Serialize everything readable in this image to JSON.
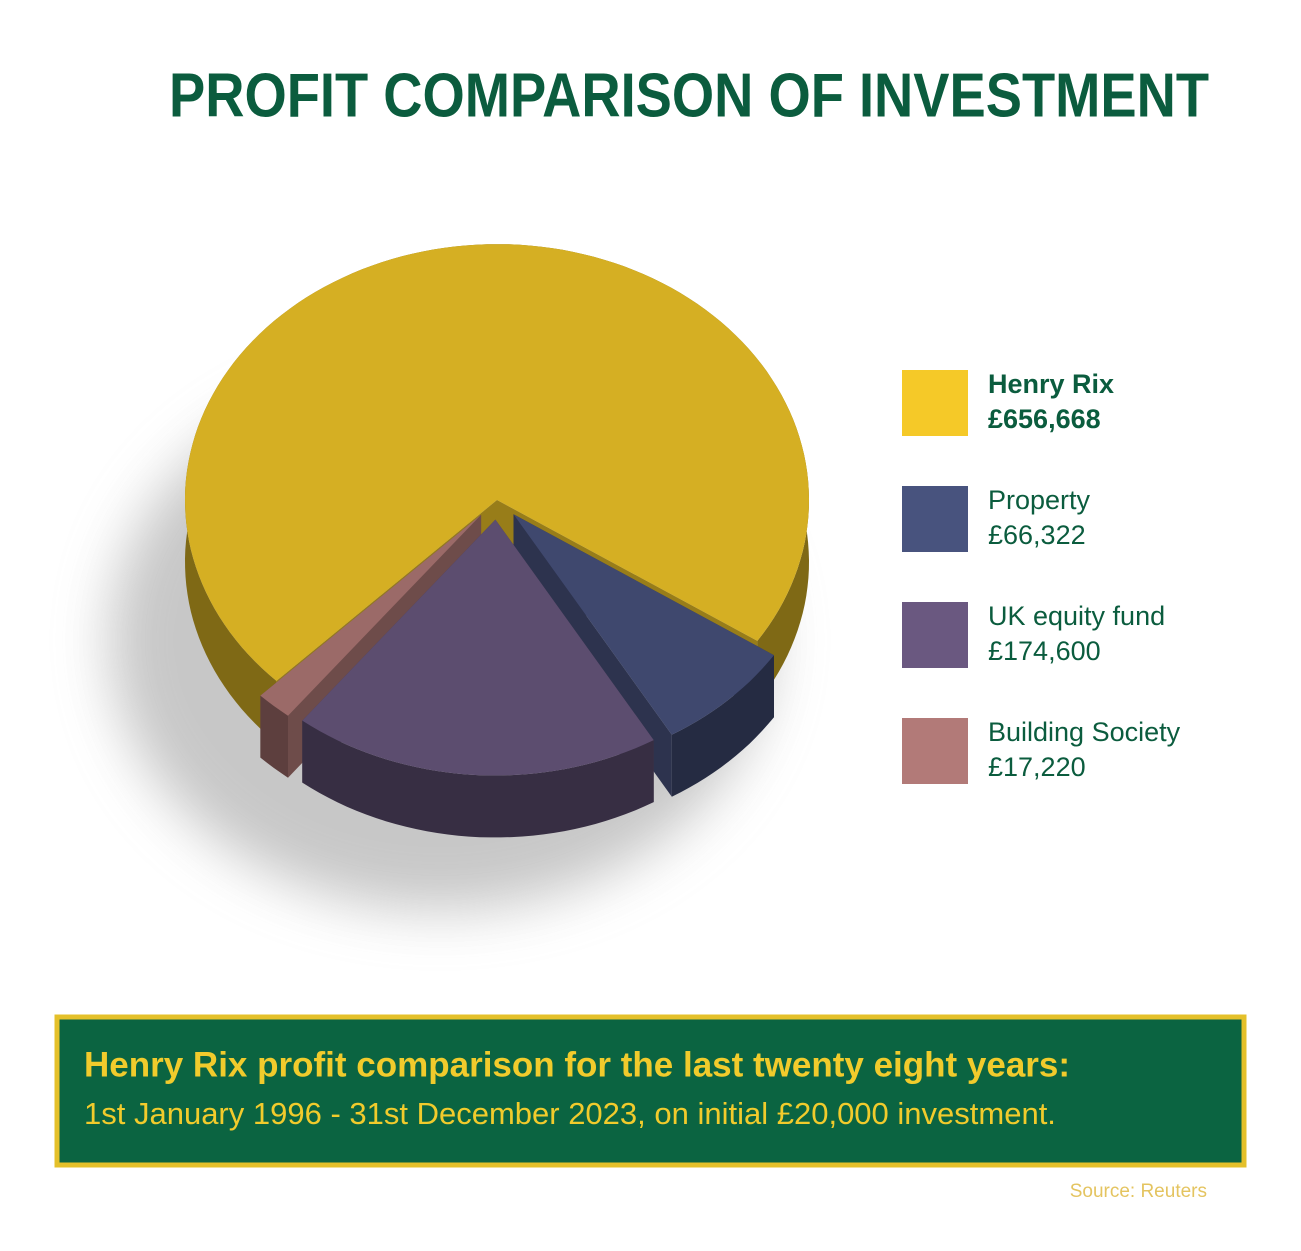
{
  "chart_data": {
    "type": "pie",
    "title": "PROFIT COMPARISON OF INVESTMENT",
    "categories": [
      "Henry Rix",
      "Property",
      "UK equity fund",
      "Building Society"
    ],
    "values": [
      656668,
      66322,
      174600,
      17220
    ],
    "value_labels": [
      "£656,668",
      "£66,322",
      "£174,600",
      "£17,220"
    ],
    "colors": [
      "#f5c928",
      "#48537e",
      "#6a5880",
      "#b27a78"
    ],
    "legend": "right",
    "annotations": [
      "Henry Rix profit comparison for the last twenty eight years:",
      "1st January 1996 - 31st December 2023, on initial £20,000 investment."
    ],
    "source": "Source: Reuters"
  }
}
